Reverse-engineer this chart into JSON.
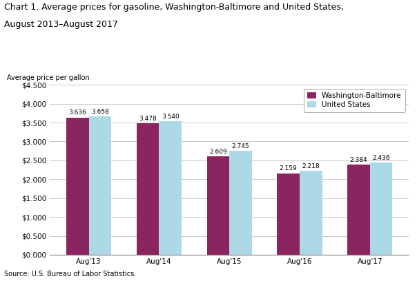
{
  "title_line1": "Chart 1. Average prices for gasoline, Washington-Baltimore and United States,",
  "title_line2": "August 2013–August 2017",
  "ylabel": "Average price per gallon",
  "source": "Source: U.S. Bureau of Labor Statistics.",
  "categories": [
    "Aug'13",
    "Aug'14",
    "Aug'15",
    "Aug'16",
    "Aug'17"
  ],
  "wb_values": [
    3.636,
    3.478,
    2.609,
    2.159,
    2.384
  ],
  "us_values": [
    3.658,
    3.54,
    2.745,
    2.218,
    2.436
  ],
  "wb_color": "#8B2560",
  "us_color": "#ADD8E6",
  "wb_label": "Washington-Baltimore",
  "us_label": "United States",
  "ylim": [
    0,
    4.5
  ],
  "ytick_labels": [
    "$0.000",
    "$0.500",
    "$1.000",
    "$1.500",
    "$2.000",
    "$2.500",
    "$3.000",
    "$3.500",
    "$4.000",
    "$4.500"
  ],
  "ytick_vals": [
    0.0,
    0.5,
    1.0,
    1.5,
    2.0,
    2.5,
    3.0,
    3.5,
    4.0,
    4.5
  ],
  "bar_width": 0.32,
  "figsize": [
    6.04,
    4.11
  ],
  "dpi": 100,
  "title_fontsize": 9,
  "tick_fontsize": 7.5,
  "bar_label_fontsize": 6.5,
  "legend_fontsize": 7.5,
  "ylabel_fontsize": 7
}
